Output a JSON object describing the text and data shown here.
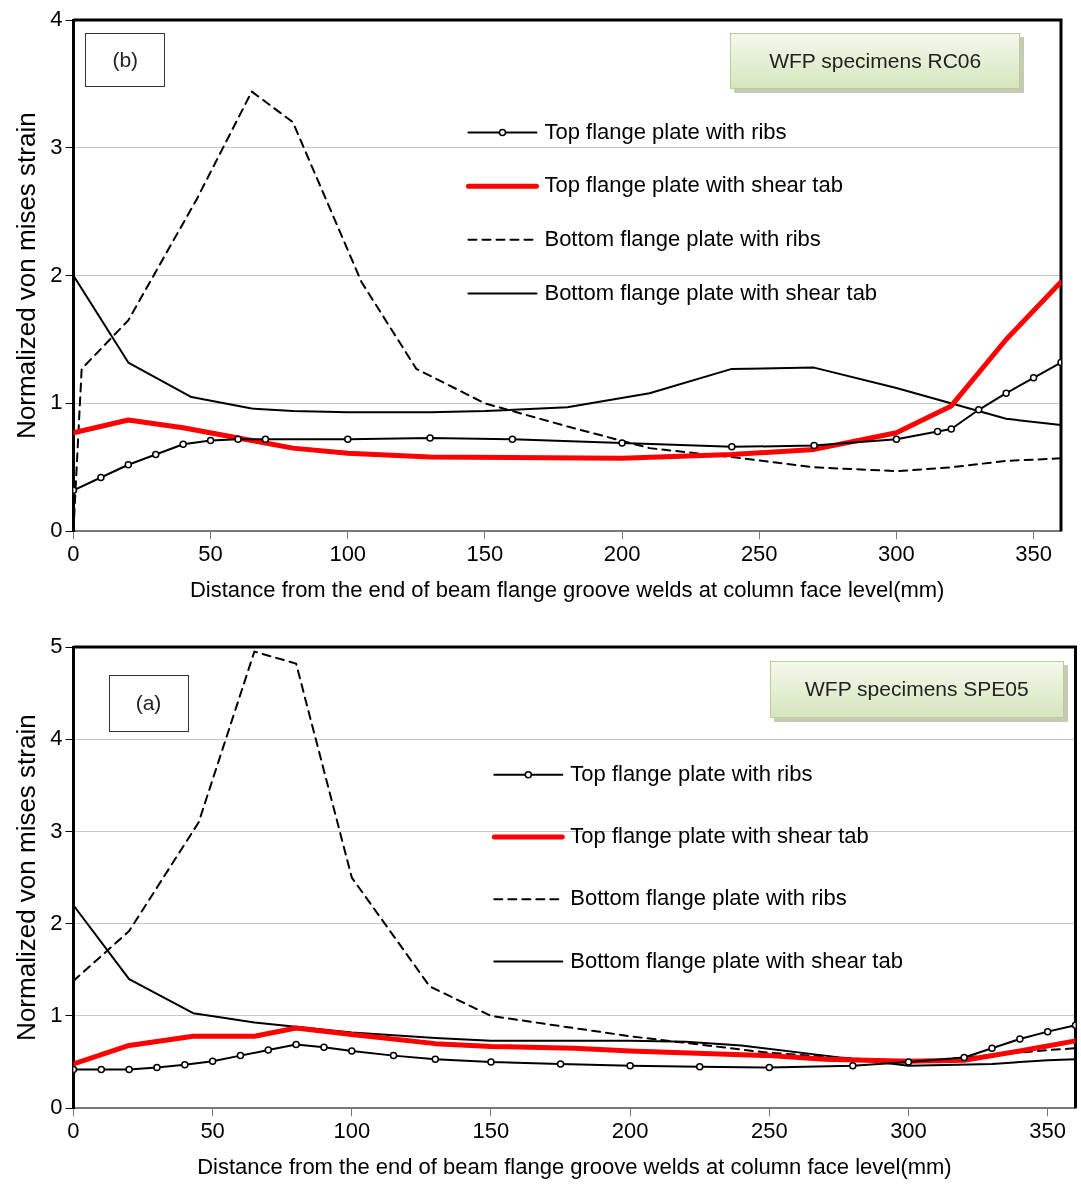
{
  "chart_data": [
    {
      "type": "line",
      "xlabel": "Distance from the end of beam flange groove welds at column face level(mm)",
      "ylabel": "Normalized von mises strain",
      "xlim": [
        0,
        360
      ],
      "xticks": [
        0,
        50,
        100,
        150,
        200,
        250,
        300,
        350
      ],
      "ylim": [
        0,
        4
      ],
      "yticks": [
        0,
        1,
        2,
        3,
        4
      ],
      "grid": "y",
      "legend": "top right",
      "annotations": [
        "(b)",
        "WFP specimens RC06"
      ],
      "series": [
        {
          "name": "Top flange plate with ribs",
          "color": "#000000",
          "marker": "circle",
          "line_style": "solid",
          "x": [
            0,
            10,
            20,
            30,
            40,
            50,
            60,
            70,
            100,
            130,
            160,
            200,
            240,
            270,
            300,
            315,
            320,
            330,
            340,
            350,
            360
          ],
          "values": [
            0.32,
            0.42,
            0.52,
            0.6,
            0.68,
            0.71,
            0.72,
            0.72,
            0.72,
            0.73,
            0.72,
            0.69,
            0.66,
            0.67,
            0.72,
            0.78,
            0.8,
            0.95,
            1.08,
            1.2,
            1.32
          ]
        },
        {
          "name": "Top flange plate with shear tab",
          "color": "#ff0000",
          "marker": "none",
          "line_style": "solid",
          "x": [
            0,
            20,
            40,
            65,
            80,
            100,
            130,
            200,
            240,
            270,
            300,
            320,
            340,
            360
          ],
          "values": [
            0.77,
            0.87,
            0.81,
            0.71,
            0.65,
            0.61,
            0.58,
            0.57,
            0.6,
            0.64,
            0.77,
            0.98,
            1.5,
            1.95
          ]
        },
        {
          "name": "Bottom flange plate with ribs",
          "color": "#000000",
          "marker": "none",
          "line_style": "dashed",
          "x": [
            0,
            3,
            20,
            45,
            65,
            80,
            105,
            125,
            150,
            180,
            210,
            240,
            270,
            300,
            320,
            340,
            360
          ],
          "values": [
            0,
            1.27,
            1.65,
            2.6,
            3.44,
            3.2,
            1.95,
            1.27,
            1.0,
            0.82,
            0.65,
            0.58,
            0.5,
            0.47,
            0.5,
            0.55,
            0.57
          ]
        },
        {
          "name": "Bottom flange plate with shear tab",
          "color": "#000000",
          "marker": "none",
          "line_style": "solid",
          "x": [
            0,
            20,
            43,
            65,
            80,
            100,
            130,
            150,
            180,
            210,
            240,
            270,
            300,
            340,
            360
          ],
          "values": [
            2.0,
            1.32,
            1.05,
            0.96,
            0.94,
            0.93,
            0.93,
            0.94,
            0.97,
            1.08,
            1.27,
            1.28,
            1.12,
            0.88,
            0.83
          ]
        }
      ]
    },
    {
      "type": "line",
      "xlabel": "Distance from the end of beam flange groove welds at column face level(mm)",
      "ylabel": "Normalized von mises strain",
      "xlim": [
        0,
        360
      ],
      "xticks": [
        0,
        50,
        100,
        150,
        200,
        250,
        300,
        350
      ],
      "ylim": [
        0,
        5
      ],
      "yticks": [
        0,
        1,
        2,
        3,
        4,
        5
      ],
      "grid": "y",
      "legend": "top right",
      "annotations": [
        "(a)",
        "WFP specimens SPE05"
      ],
      "series": [
        {
          "name": "Top flange plate with ribs",
          "color": "#000000",
          "marker": "circle",
          "line_style": "solid",
          "x": [
            0,
            10,
            20,
            30,
            40,
            50,
            60,
            70,
            80,
            90,
            100,
            115,
            130,
            150,
            175,
            200,
            225,
            250,
            280,
            300,
            320,
            330,
            340,
            350,
            360
          ],
          "values": [
            0.42,
            0.42,
            0.42,
            0.44,
            0.47,
            0.51,
            0.57,
            0.63,
            0.69,
            0.66,
            0.62,
            0.57,
            0.53,
            0.5,
            0.48,
            0.46,
            0.45,
            0.44,
            0.46,
            0.5,
            0.55,
            0.65,
            0.75,
            0.83,
            0.9
          ]
        },
        {
          "name": "Top flange plate with shear tab",
          "color": "#ff0000",
          "marker": "none",
          "line_style": "solid",
          "x": [
            0,
            20,
            43,
            65,
            80,
            100,
            130,
            150,
            180,
            200,
            250,
            270,
            300,
            320,
            340,
            360
          ],
          "values": [
            0.48,
            0.68,
            0.78,
            0.78,
            0.87,
            0.8,
            0.7,
            0.67,
            0.65,
            0.62,
            0.57,
            0.53,
            0.51,
            0.52,
            0.62,
            0.73
          ]
        },
        {
          "name": "Bottom flange plate with ribs",
          "color": "#000000",
          "marker": "none",
          "line_style": "dashed",
          "x": [
            0,
            20,
            45,
            65,
            80,
            100,
            128,
            150,
            200,
            250,
            300,
            320,
            350,
            360
          ],
          "values": [
            1.38,
            1.92,
            3.1,
            4.95,
            4.82,
            2.5,
            1.32,
            1.0,
            0.78,
            0.6,
            0.5,
            0.55,
            0.63,
            0.65
          ]
        },
        {
          "name": "Bottom flange plate with shear tab",
          "color": "#000000",
          "marker": "none",
          "line_style": "solid",
          "x": [
            0,
            20,
            43,
            65,
            100,
            130,
            150,
            200,
            220,
            240,
            270,
            300,
            330,
            350,
            360
          ],
          "values": [
            2.2,
            1.4,
            1.03,
            0.93,
            0.82,
            0.76,
            0.73,
            0.73,
            0.72,
            0.68,
            0.57,
            0.46,
            0.48,
            0.52,
            0.53
          ]
        }
      ]
    }
  ]
}
